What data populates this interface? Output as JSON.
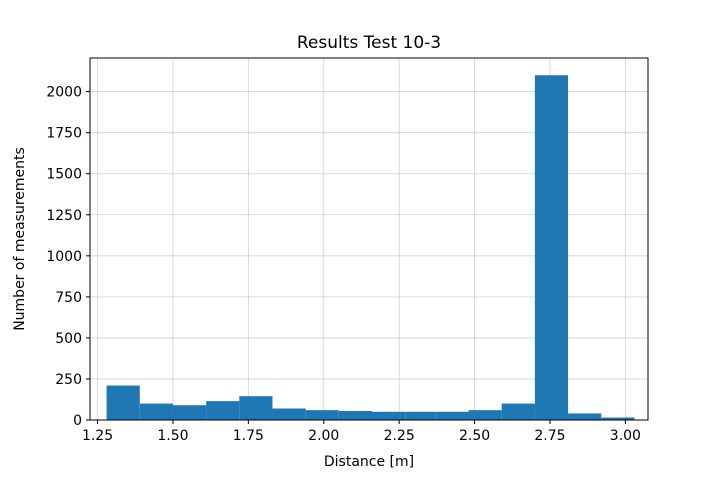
{
  "chart_data": {
    "type": "bar",
    "title": "Results Test 10-3",
    "xlabel": "Distance [m]",
    "ylabel": "Number of measurements",
    "xlim": [
      1.225,
      3.075
    ],
    "ylim": [
      0,
      2205
    ],
    "xticks": [
      1.25,
      1.5,
      1.75,
      2.0,
      2.25,
      2.5,
      2.75,
      3.0
    ],
    "xtick_labels": [
      "1.25",
      "1.50",
      "1.75",
      "2.00",
      "2.25",
      "2.50",
      "2.75",
      "3.00"
    ],
    "yticks": [
      0,
      250,
      500,
      750,
      1000,
      1250,
      1500,
      1750,
      2000
    ],
    "ytick_labels": [
      "0",
      "250",
      "500",
      "750",
      "1000",
      "1250",
      "1500",
      "1750",
      "2000"
    ],
    "grid": true,
    "bar_color": "#1f77b4",
    "bins": [
      {
        "x0": 1.28,
        "x1": 1.39,
        "value": 210
      },
      {
        "x0": 1.39,
        "x1": 1.5,
        "value": 100
      },
      {
        "x0": 1.5,
        "x1": 1.61,
        "value": 90
      },
      {
        "x0": 1.61,
        "x1": 1.72,
        "value": 115
      },
      {
        "x0": 1.72,
        "x1": 1.83,
        "value": 145
      },
      {
        "x0": 1.83,
        "x1": 1.94,
        "value": 70
      },
      {
        "x0": 1.94,
        "x1": 2.05,
        "value": 60
      },
      {
        "x0": 2.05,
        "x1": 2.16,
        "value": 55
      },
      {
        "x0": 2.16,
        "x1": 2.27,
        "value": 50
      },
      {
        "x0": 2.27,
        "x1": 2.37,
        "value": 50
      },
      {
        "x0": 2.37,
        "x1": 2.48,
        "value": 50
      },
      {
        "x0": 2.48,
        "x1": 2.59,
        "value": 60
      },
      {
        "x0": 2.59,
        "x1": 2.7,
        "value": 100
      },
      {
        "x0": 2.7,
        "x1": 2.81,
        "value": 2100
      },
      {
        "x0": 2.81,
        "x1": 2.92,
        "value": 40
      },
      {
        "x0": 2.92,
        "x1": 3.03,
        "value": 15
      }
    ]
  }
}
